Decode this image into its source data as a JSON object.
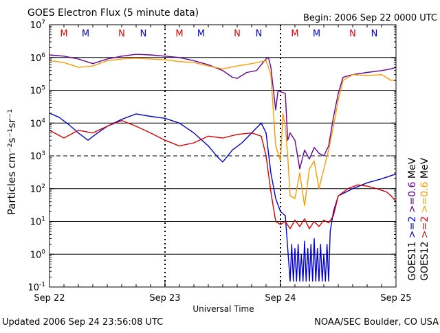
{
  "chart_data": {
    "type": "line",
    "title": "GOES Electron Flux (5 minute data)",
    "begin_label": "Begin: 2006 Sep 22 0000 UTC",
    "xlabel": "Universal Time",
    "ylabel": "Particles cm⁻²s⁻¹sr⁻¹",
    "y_scale": "log",
    "ylim": [
      0.1,
      10000000
    ],
    "y_ticks": [
      {
        "value": 0.1,
        "base": "10",
        "exp": "-1"
      },
      {
        "value": 1,
        "base": "10",
        "exp": "0"
      },
      {
        "value": 10,
        "base": "10",
        "exp": "1"
      },
      {
        "value": 100,
        "base": "10",
        "exp": "2"
      },
      {
        "value": 1000,
        "base": "10",
        "exp": "3"
      },
      {
        "value": 10000,
        "base": "10",
        "exp": "4"
      },
      {
        "value": 100000,
        "base": "10",
        "exp": "5"
      },
      {
        "value": 1000000,
        "base": "10",
        "exp": "6"
      },
      {
        "value": 10000000,
        "base": "10",
        "exp": "7"
      }
    ],
    "xlim": [
      "2006-09-22 00:00",
      "2006-09-25 00:00"
    ],
    "x_ticks": [
      "Sep 22",
      "Sep 23",
      "Sep 24",
      "Sep 25"
    ],
    "grid": "horizontal at each decade; 1000 line dashed",
    "markers": [
      {
        "label": "M",
        "time": "2006-09-22 03:00",
        "color": "#dd0000"
      },
      {
        "label": "M",
        "time": "2006-09-22 07:30",
        "color": "#0000cc"
      },
      {
        "label": "N",
        "time": "2006-09-22 15:00",
        "color": "#dd0000"
      },
      {
        "label": "N",
        "time": "2006-09-22 19:30",
        "color": "#0000cc"
      },
      {
        "label": "M",
        "time": "2006-09-23 03:00",
        "color": "#dd0000"
      },
      {
        "label": "M",
        "time": "2006-09-23 07:30",
        "color": "#0000cc"
      },
      {
        "label": "N",
        "time": "2006-09-23 15:00",
        "color": "#dd0000"
      },
      {
        "label": "N",
        "time": "2006-09-23 19:30",
        "color": "#0000cc"
      },
      {
        "label": "M",
        "time": "2006-09-24 03:00",
        "color": "#dd0000"
      },
      {
        "label": "M",
        "time": "2006-09-24 07:30",
        "color": "#0000cc"
      },
      {
        "label": "N",
        "time": "2006-09-24 15:00",
        "color": "#dd0000"
      },
      {
        "label": "N",
        "time": "2006-09-24 19:30",
        "color": "#0000cc"
      }
    ],
    "legend": {
      "placement": "right, vertical",
      "columns": [
        {
          "sat": "GOES11",
          "entries": [
            {
              "text": ">=2",
              "color": "#0000dd"
            },
            {
              "text": ">=0.6",
              "color": "#660099"
            },
            {
              "text": "MeV",
              "color": "#000000"
            }
          ]
        },
        {
          "sat": "GOES12",
          "entries": [
            {
              "text": ">=2",
              "color": "#dd0000"
            },
            {
              "text": ">=0.6",
              "color": "#ff9900"
            },
            {
              "text": "MeV",
              "color": "#000000"
            }
          ]
        }
      ]
    },
    "series": [
      {
        "name": "GOES11 >=0.6 MeV",
        "color": "#660099",
        "points": [
          [
            "2006-09-22 00:00",
            1200000
          ],
          [
            "2006-09-22 03:00",
            1100000
          ],
          [
            "2006-09-22 06:00",
            900000
          ],
          [
            "2006-09-22 09:00",
            650000
          ],
          [
            "2006-09-22 12:00",
            900000
          ],
          [
            "2006-09-22 15:00",
            1100000
          ],
          [
            "2006-09-22 18:00",
            1250000
          ],
          [
            "2006-09-22 21:00",
            1200000
          ],
          [
            "2006-09-23 00:00",
            1100000
          ],
          [
            "2006-09-23 03:00",
            1000000
          ],
          [
            "2006-09-23 06:00",
            800000
          ],
          [
            "2006-09-23 09:00",
            600000
          ],
          [
            "2006-09-23 12:00",
            400000
          ],
          [
            "2006-09-23 14:00",
            250000
          ],
          [
            "2006-09-23 15:00",
            230000
          ],
          [
            "2006-09-23 17:00",
            350000
          ],
          [
            "2006-09-23 19:00",
            400000
          ],
          [
            "2006-09-23 20:00",
            600000
          ],
          [
            "2006-09-23 21:00",
            900000
          ],
          [
            "2006-09-23 21:30",
            1000000
          ],
          [
            "2006-09-23 22:00",
            500000
          ],
          [
            "2006-09-23 23:00",
            25000
          ],
          [
            "2006-09-23 23:30",
            100000
          ],
          [
            "2006-09-24 00:00",
            90000
          ],
          [
            "2006-09-24 01:00",
            80000
          ],
          [
            "2006-09-24 01:30",
            3000
          ],
          [
            "2006-09-24 02:00",
            5000
          ],
          [
            "2006-09-24 03:00",
            3000
          ],
          [
            "2006-09-24 04:00",
            400
          ],
          [
            "2006-09-24 05:00",
            1500
          ],
          [
            "2006-09-24 06:00",
            800
          ],
          [
            "2006-09-24 07:00",
            1800
          ],
          [
            "2006-09-24 08:00",
            1200
          ],
          [
            "2006-09-24 09:00",
            1000
          ],
          [
            "2006-09-24 10:00",
            2000
          ],
          [
            "2006-09-24 11:00",
            15000
          ],
          [
            "2006-09-24 12:00",
            80000
          ],
          [
            "2006-09-24 13:00",
            250000
          ],
          [
            "2006-09-24 15:00",
            300000
          ],
          [
            "2006-09-24 18:00",
            350000
          ],
          [
            "2006-09-24 21:00",
            400000
          ],
          [
            "2006-09-24 23:00",
            450000
          ],
          [
            "2006-09-25 00:00",
            500000
          ]
        ]
      },
      {
        "name": "GOES12 >=0.6 MeV",
        "color": "#ff9900",
        "points": [
          [
            "2006-09-22 00:00",
            800000
          ],
          [
            "2006-09-22 03:00",
            700000
          ],
          [
            "2006-09-22 06:00",
            500000
          ],
          [
            "2006-09-22 09:00",
            550000
          ],
          [
            "2006-09-22 12:00",
            800000
          ],
          [
            "2006-09-22 15:00",
            900000
          ],
          [
            "2006-09-22 18:00",
            950000
          ],
          [
            "2006-09-22 21:00",
            900000
          ],
          [
            "2006-09-23 00:00",
            850000
          ],
          [
            "2006-09-23 03:00",
            750000
          ],
          [
            "2006-09-23 06:00",
            700000
          ],
          [
            "2006-09-23 09:00",
            550000
          ],
          [
            "2006-09-23 12:00",
            450000
          ],
          [
            "2006-09-23 15:00",
            550000
          ],
          [
            "2006-09-23 18:00",
            650000
          ],
          [
            "2006-09-23 21:00",
            800000
          ],
          [
            "2006-09-23 22:00",
            300000
          ],
          [
            "2006-09-23 23:00",
            2000
          ],
          [
            "2006-09-24 00:00",
            700
          ],
          [
            "2006-09-24 00:30",
            20000
          ],
          [
            "2006-09-24 01:00",
            8000
          ],
          [
            "2006-09-24 01:30",
            1000
          ],
          [
            "2006-09-24 02:00",
            60
          ],
          [
            "2006-09-24 03:00",
            50
          ],
          [
            "2006-09-24 04:00",
            300
          ],
          [
            "2006-09-24 05:00",
            30
          ],
          [
            "2006-09-24 06:00",
            400
          ],
          [
            "2006-09-24 07:00",
            700
          ],
          [
            "2006-09-24 08:00",
            100
          ],
          [
            "2006-09-24 09:00",
            400
          ],
          [
            "2006-09-24 10:00",
            1500
          ],
          [
            "2006-09-24 11:00",
            8000
          ],
          [
            "2006-09-24 12:00",
            50000
          ],
          [
            "2006-09-24 13:00",
            200000
          ],
          [
            "2006-09-24 15:00",
            300000
          ],
          [
            "2006-09-24 18:00",
            280000
          ],
          [
            "2006-09-24 21:00",
            300000
          ],
          [
            "2006-09-24 23:00",
            200000
          ],
          [
            "2006-09-25 00:00",
            200000
          ]
        ]
      },
      {
        "name": "GOES11 >=2 MeV",
        "color": "#0000dd",
        "points": [
          [
            "2006-09-22 00:00",
            20000
          ],
          [
            "2006-09-22 02:00",
            15000
          ],
          [
            "2006-09-22 04:00",
            9000
          ],
          [
            "2006-09-22 06:00",
            5000
          ],
          [
            "2006-09-22 08:00",
            3000
          ],
          [
            "2006-09-22 10:00",
            5000
          ],
          [
            "2006-09-22 12:00",
            8000
          ],
          [
            "2006-09-22 15:00",
            13000
          ],
          [
            "2006-09-22 18:00",
            19000
          ],
          [
            "2006-09-22 21:00",
            16000
          ],
          [
            "2006-09-23 00:00",
            14000
          ],
          [
            "2006-09-23 03:00",
            10000
          ],
          [
            "2006-09-23 06:00",
            5000
          ],
          [
            "2006-09-23 09:00",
            2000
          ],
          [
            "2006-09-23 11:00",
            900
          ],
          [
            "2006-09-23 12:00",
            650
          ],
          [
            "2006-09-23 14:00",
            1500
          ],
          [
            "2006-09-23 16:00",
            2500
          ],
          [
            "2006-09-23 18:00",
            5000
          ],
          [
            "2006-09-23 20:00",
            10000
          ],
          [
            "2006-09-23 21:00",
            5000
          ],
          [
            "2006-09-23 22:00",
            300
          ],
          [
            "2006-09-23 23:00",
            50
          ],
          [
            "2006-09-24 00:00",
            20
          ],
          [
            "2006-09-24 01:00",
            15
          ],
          [
            "2006-09-24 02:00",
            0.15
          ],
          [
            "2006-09-24 02:20",
            2
          ],
          [
            "2006-09-24 02:40",
            0.15
          ],
          [
            "2006-09-24 03:00",
            1.5
          ],
          [
            "2006-09-24 03:20",
            0.15
          ],
          [
            "2006-09-24 03:40",
            2
          ],
          [
            "2006-09-24 04:00",
            0.15
          ],
          [
            "2006-09-24 04:20",
            1
          ],
          [
            "2006-09-24 04:40",
            0.15
          ],
          [
            "2006-09-24 05:00",
            2.5
          ],
          [
            "2006-09-24 05:20",
            0.15
          ],
          [
            "2006-09-24 05:40",
            1.5
          ],
          [
            "2006-09-24 06:00",
            0.15
          ],
          [
            "2006-09-24 06:20",
            2
          ],
          [
            "2006-09-24 06:40",
            0.15
          ],
          [
            "2006-09-24 07:00",
            3
          ],
          [
            "2006-09-24 07:20",
            0.15
          ],
          [
            "2006-09-24 07:40",
            1.5
          ],
          [
            "2006-09-24 08:00",
            0.15
          ],
          [
            "2006-09-24 08:20",
            2
          ],
          [
            "2006-09-24 08:40",
            0.15
          ],
          [
            "2006-09-24 09:00",
            1
          ],
          [
            "2006-09-24 09:20",
            0.15
          ],
          [
            "2006-09-24 09:40",
            2
          ],
          [
            "2006-09-24 10:00",
            0.15
          ],
          [
            "2006-09-24 10:20",
            5
          ],
          [
            "2006-09-24 11:00",
            20
          ],
          [
            "2006-09-24 12:00",
            60
          ],
          [
            "2006-09-24 15:00",
            100
          ],
          [
            "2006-09-24 18:00",
            150
          ],
          [
            "2006-09-24 21:00",
            200
          ],
          [
            "2006-09-25 00:00",
            280
          ]
        ]
      },
      {
        "name": "GOES12 >=2 MeV",
        "color": "#dd0000",
        "points": [
          [
            "2006-09-22 00:00",
            6000
          ],
          [
            "2006-09-22 03:00",
            3500
          ],
          [
            "2006-09-22 06:00",
            6000
          ],
          [
            "2006-09-22 09:00",
            5000
          ],
          [
            "2006-09-22 12:00",
            8000
          ],
          [
            "2006-09-22 15:00",
            12000
          ],
          [
            "2006-09-22 18:00",
            8000
          ],
          [
            "2006-09-22 21:00",
            5000
          ],
          [
            "2006-09-23 00:00",
            3000
          ],
          [
            "2006-09-23 03:00",
            2000
          ],
          [
            "2006-09-23 06:00",
            2500
          ],
          [
            "2006-09-23 09:00",
            4000
          ],
          [
            "2006-09-23 12:00",
            3500
          ],
          [
            "2006-09-23 15:00",
            4500
          ],
          [
            "2006-09-23 18:00",
            5000
          ],
          [
            "2006-09-23 20:00",
            4000
          ],
          [
            "2006-09-23 21:00",
            1000
          ],
          [
            "2006-09-23 22:00",
            80
          ],
          [
            "2006-09-23 23:00",
            10
          ],
          [
            "2006-09-24 00:00",
            8
          ],
          [
            "2006-09-24 01:00",
            10
          ],
          [
            "2006-09-24 02:00",
            6
          ],
          [
            "2006-09-24 03:00",
            11
          ],
          [
            "2006-09-24 04:00",
            7
          ],
          [
            "2006-09-24 05:00",
            12
          ],
          [
            "2006-09-24 06:00",
            6
          ],
          [
            "2006-09-24 07:00",
            10
          ],
          [
            "2006-09-24 08:00",
            7
          ],
          [
            "2006-09-24 09:00",
            11
          ],
          [
            "2006-09-24 10:00",
            9
          ],
          [
            "2006-09-24 11:00",
            15
          ],
          [
            "2006-09-24 12:00",
            60
          ],
          [
            "2006-09-24 14:00",
            100
          ],
          [
            "2006-09-24 16:00",
            130
          ],
          [
            "2006-09-24 18:00",
            120
          ],
          [
            "2006-09-24 20:00",
            100
          ],
          [
            "2006-09-24 22:00",
            80
          ],
          [
            "2006-09-24 23:00",
            60
          ],
          [
            "2006-09-25 00:00",
            40
          ]
        ]
      }
    ]
  },
  "footer": {
    "updated": "Updated 2006 Sep 24 23:56:08 UTC",
    "credit": "NOAA/SEC Boulder, CO USA"
  }
}
